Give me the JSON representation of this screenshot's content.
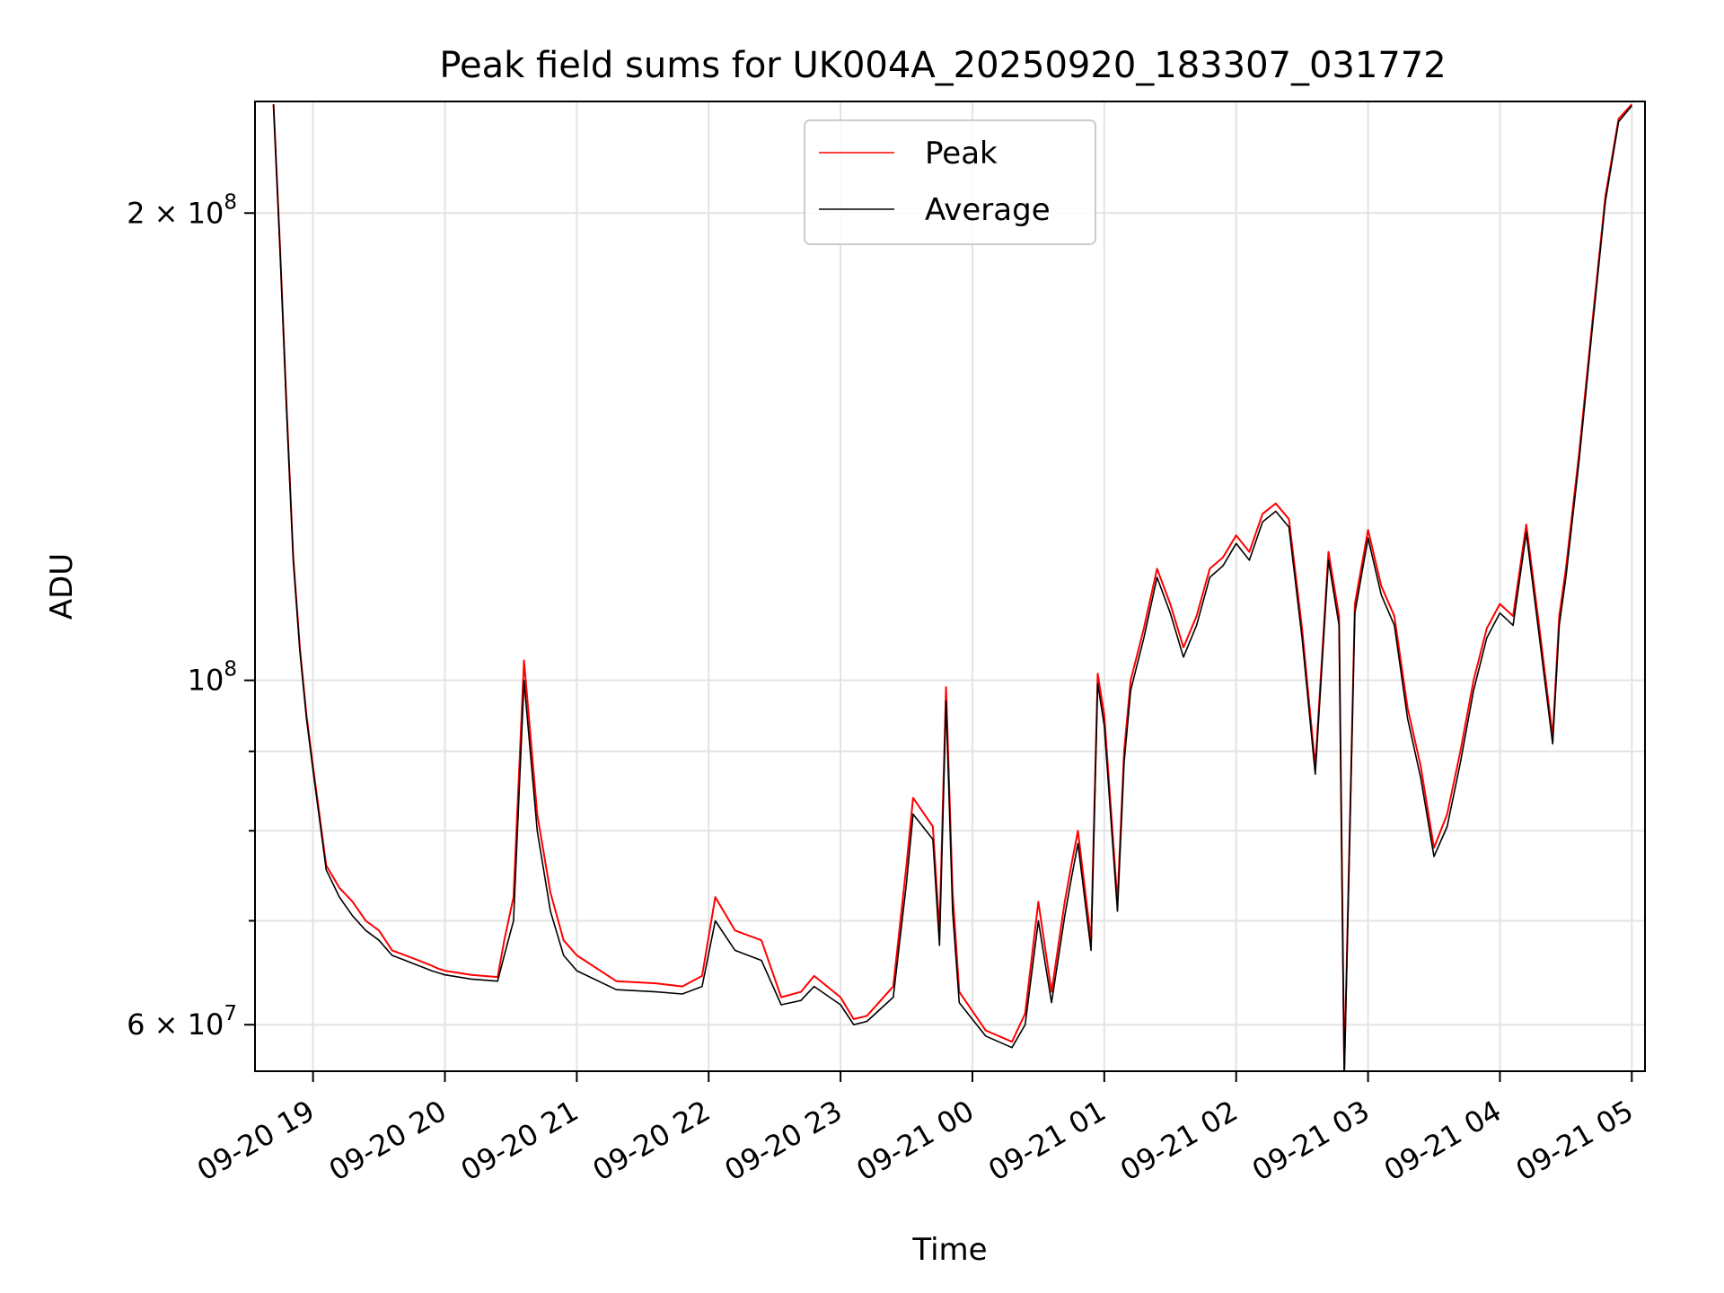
{
  "chart_data": {
    "type": "line",
    "title": "Peak field sums for UK004A_20250920_183307_031772",
    "xlabel": "Time",
    "ylabel": "ADU",
    "yscale": "log",
    "ylim": [
      56000000,
      236000000
    ],
    "xlim_hours": [
      -0.44,
      10.1
    ],
    "x_ticks": [
      {
        "label": "09-20 19",
        "h": 0
      },
      {
        "label": "09-20 20",
        "h": 1
      },
      {
        "label": "09-20 21",
        "h": 2
      },
      {
        "label": "09-20 22",
        "h": 3
      },
      {
        "label": "09-20 23",
        "h": 4
      },
      {
        "label": "09-21 00",
        "h": 5
      },
      {
        "label": "09-21 01",
        "h": 6
      },
      {
        "label": "09-21 02",
        "h": 7
      },
      {
        "label": "09-21 03",
        "h": 8
      },
      {
        "label": "09-21 04",
        "h": 9
      },
      {
        "label": "09-21 05",
        "h": 10
      }
    ],
    "y_ticks_major": [
      {
        "label_base": "2 × 10",
        "label_exp": "8",
        "value": 200000000
      },
      {
        "label_base": "10",
        "label_exp": "8",
        "value": 100000000
      },
      {
        "label_base": "6 × 10",
        "label_exp": "7",
        "value": 60000000
      }
    ],
    "y_ticks_minor": [
      70000000,
      80000000,
      90000000
    ],
    "grid": true,
    "legend": {
      "placement": "top-center",
      "entries": [
        "Peak",
        "Average"
      ]
    },
    "series": [
      {
        "name": "Peak",
        "color": "#ff0000",
        "x": [
          -0.3,
          -0.25,
          -0.2,
          -0.15,
          -0.1,
          -0.05,
          0.0,
          0.1,
          0.2,
          0.3,
          0.4,
          0.5,
          0.6,
          0.7,
          0.8,
          0.9,
          0.95,
          1.0,
          1.2,
          1.4,
          1.45,
          1.52,
          1.6,
          1.7,
          1.8,
          1.9,
          2.0,
          2.3,
          2.6,
          2.8,
          2.95,
          3.05,
          3.2,
          3.4,
          3.55,
          3.7,
          3.8,
          4.0,
          4.1,
          4.2,
          4.4,
          4.5,
          4.55,
          4.7,
          4.75,
          4.8,
          4.85,
          4.9,
          5.1,
          5.3,
          5.4,
          5.5,
          5.6,
          5.7,
          5.75,
          5.8,
          5.9,
          5.95,
          6.0,
          6.1,
          6.15,
          6.2,
          6.3,
          6.4,
          6.5,
          6.6,
          6.7,
          6.8,
          6.9,
          7.0,
          7.1,
          7.2,
          7.3,
          7.4,
          7.5,
          7.6,
          7.7,
          7.78,
          7.82,
          7.9,
          8.0,
          8.1,
          8.2,
          8.3,
          8.4,
          8.5,
          8.6,
          8.7,
          8.8,
          8.9,
          9.0,
          9.1,
          9.2,
          9.3,
          9.4,
          9.45,
          9.5,
          9.6,
          9.7,
          9.8,
          9.9,
          10.0
        ],
        "y": [
          235000000,
          190000000,
          150000000,
          120000000,
          105000000,
          95000000,
          88000000,
          76000000,
          73500000,
          72000000,
          70000000,
          69000000,
          67000000,
          66500000,
          66000000,
          65500000,
          65200000,
          65000000,
          64600000,
          64400000,
          68000000,
          72500000,
          103000000,
          82000000,
          73000000,
          68000000,
          66500000,
          64000000,
          63800000,
          63500000,
          64500000,
          72500000,
          69000000,
          68000000,
          62500000,
          63000000,
          64500000,
          62500000,
          60500000,
          60800000,
          63500000,
          76000000,
          84000000,
          80500000,
          69000000,
          99000000,
          73000000,
          63000000,
          59500000,
          58500000,
          61000000,
          72000000,
          63000000,
          72000000,
          76000000,
          80000000,
          68000000,
          101000000,
          95000000,
          72000000,
          90000000,
          100000000,
          108000000,
          118000000,
          112000000,
          105000000,
          110000000,
          118000000,
          120000000,
          124000000,
          121000000,
          128000000,
          130000000,
          127000000,
          108000000,
          88000000,
          121000000,
          110000000,
          56000000,
          112000000,
          125000000,
          115000000,
          110000000,
          96000000,
          88000000,
          78000000,
          82000000,
          90000000,
          100000000,
          108000000,
          112000000,
          110000000,
          126000000,
          108000000,
          92000000,
          110000000,
          118000000,
          140000000,
          170000000,
          205000000,
          230000000,
          235000000
        ]
      },
      {
        "name": "Average",
        "color": "#000000",
        "x": [
          -0.3,
          -0.25,
          -0.2,
          -0.15,
          -0.1,
          -0.05,
          0.0,
          0.1,
          0.2,
          0.3,
          0.4,
          0.5,
          0.6,
          0.7,
          0.8,
          0.9,
          0.95,
          1.0,
          1.2,
          1.4,
          1.45,
          1.52,
          1.6,
          1.7,
          1.8,
          1.9,
          2.0,
          2.3,
          2.6,
          2.8,
          2.95,
          3.05,
          3.2,
          3.4,
          3.55,
          3.7,
          3.8,
          4.0,
          4.1,
          4.2,
          4.4,
          4.5,
          4.55,
          4.7,
          4.75,
          4.8,
          4.85,
          4.9,
          5.1,
          5.3,
          5.4,
          5.5,
          5.6,
          5.7,
          5.75,
          5.8,
          5.9,
          5.95,
          6.0,
          6.1,
          6.15,
          6.2,
          6.3,
          6.4,
          6.5,
          6.6,
          6.7,
          6.8,
          6.9,
          7.0,
          7.1,
          7.2,
          7.3,
          7.4,
          7.5,
          7.6,
          7.7,
          7.78,
          7.82,
          7.9,
          8.0,
          8.1,
          8.2,
          8.3,
          8.4,
          8.5,
          8.6,
          8.7,
          8.8,
          8.9,
          9.0,
          9.1,
          9.2,
          9.3,
          9.4,
          9.45,
          9.5,
          9.6,
          9.7,
          9.8,
          9.9,
          10.0
        ],
        "y": [
          235000000,
          189000000,
          149000000,
          119500000,
          104500000,
          94500000,
          87500000,
          75500000,
          72500000,
          70500000,
          69000000,
          68000000,
          66500000,
          66000000,
          65500000,
          65000000,
          64800000,
          64600000,
          64200000,
          64000000,
          66500000,
          70000000,
          100000000,
          80000000,
          71000000,
          66500000,
          65000000,
          63200000,
          63000000,
          62800000,
          63500000,
          70000000,
          67000000,
          66000000,
          61800000,
          62200000,
          63500000,
          61800000,
          60000000,
          60300000,
          62500000,
          74000000,
          82000000,
          79000000,
          67500000,
          97000000,
          71000000,
          62000000,
          59000000,
          58000000,
          60000000,
          70000000,
          62000000,
          70500000,
          74500000,
          78500000,
          67000000,
          99500000,
          93500000,
          71000000,
          88500000,
          98500000,
          106500000,
          116500000,
          110500000,
          103500000,
          108500000,
          116500000,
          118500000,
          122500000,
          119500000,
          126500000,
          128500000,
          125500000,
          106500000,
          87000000,
          119500000,
          108500000,
          55500000,
          110500000,
          123500000,
          113500000,
          108500000,
          94500000,
          86500000,
          77000000,
          80500000,
          88500000,
          98500000,
          106500000,
          110500000,
          108500000,
          124500000,
          106500000,
          91000000,
          108500000,
          116500000,
          138500000,
          168500000,
          203500000,
          229000000,
          234500000
        ]
      }
    ]
  }
}
